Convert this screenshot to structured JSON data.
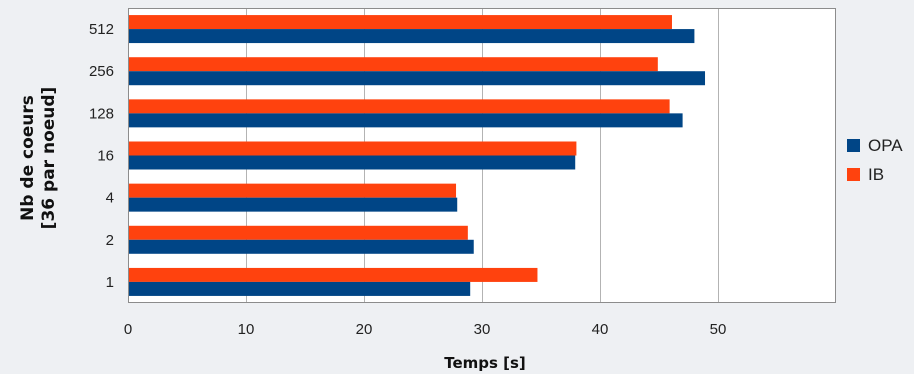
{
  "chart_data": {
    "type": "bar",
    "orientation": "horizontal",
    "categories": [
      "512",
      "256",
      "128",
      "16",
      "4",
      "2",
      "1"
    ],
    "series": [
      {
        "name": "IB",
        "color": "#ff420e",
        "values": [
          46.1,
          44.9,
          45.9,
          38.0,
          27.8,
          28.8,
          34.7
        ]
      },
      {
        "name": "OPA",
        "color": "#004586",
        "values": [
          48.0,
          48.9,
          47.0,
          37.9,
          27.9,
          29.3,
          29.0
        ]
      }
    ],
    "xlabel": "Temps [s]",
    "ylabel_lines": [
      "Nb de coeurs",
      "[36 par noeud]"
    ],
    "xlim": [
      0,
      60
    ],
    "x_ticks": [
      0,
      10,
      20,
      30,
      40,
      50
    ],
    "grid": "vertical",
    "legend": {
      "placement": "right",
      "entries": [
        "OPA",
        "IB"
      ]
    },
    "colors": {
      "background": "#eef0f3",
      "plot_background": "#ffffff",
      "grid": "#b3b3b3"
    }
  }
}
